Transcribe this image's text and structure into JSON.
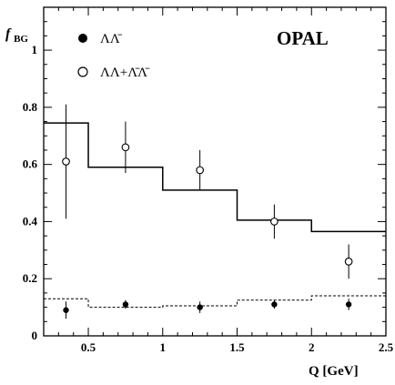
{
  "chart_data": {
    "type": "scatter",
    "experiment_label": "OPAL",
    "xlabel": "Q [GeV]",
    "ylabel": "f_BG",
    "ylabel_main": "f",
    "ylabel_sub": "BG",
    "xlim": [
      0.2,
      2.5
    ],
    "ylim": [
      0,
      1.15
    ],
    "x_ticks": [
      0.5,
      1,
      1.5,
      2,
      2.5
    ],
    "x_tick_labels": [
      "0.5",
      "1",
      "1.5",
      "2",
      "2.5"
    ],
    "y_ticks": [
      0,
      0.2,
      0.4,
      0.6,
      0.8,
      1
    ],
    "y_tick_labels": [
      "0",
      "0.2",
      "0.4",
      "0.6",
      "0.8",
      "1"
    ],
    "legend_position": "top-left",
    "series": [
      {
        "name": "ΛΛ̄",
        "marker": "filled-circle",
        "points": [
          {
            "x": 0.35,
            "y": 0.09,
            "yerr": 0.03
          },
          {
            "x": 0.75,
            "y": 0.11,
            "yerr": 0.015
          },
          {
            "x": 1.25,
            "y": 0.1,
            "yerr": 0.02
          },
          {
            "x": 1.75,
            "y": 0.11,
            "yerr": 0.015
          },
          {
            "x": 2.25,
            "y": 0.11,
            "yerr": 0.02
          }
        ],
        "histogram_style": "dashed",
        "histogram": [
          {
            "x0": 0.2,
            "x1": 0.5,
            "y": 0.13
          },
          {
            "x0": 0.5,
            "x1": 1.0,
            "y": 0.1
          },
          {
            "x0": 1.0,
            "x1": 1.5,
            "y": 0.105
          },
          {
            "x0": 1.5,
            "x1": 2.0,
            "y": 0.125
          },
          {
            "x0": 2.0,
            "x1": 2.5,
            "y": 0.14
          }
        ]
      },
      {
        "name": "ΛΛ+Λ̄Λ̄",
        "marker": "open-circle",
        "points": [
          {
            "x": 0.35,
            "y": 0.61,
            "yerr": 0.2
          },
          {
            "x": 0.75,
            "y": 0.66,
            "yerr": 0.09
          },
          {
            "x": 1.25,
            "y": 0.58,
            "yerr": 0.07
          },
          {
            "x": 1.75,
            "y": 0.4,
            "yerr": 0.06
          },
          {
            "x": 2.25,
            "y": 0.26,
            "yerr": 0.06
          }
        ],
        "histogram_style": "solid",
        "histogram": [
          {
            "x0": 0.2,
            "x1": 0.5,
            "y": 0.745
          },
          {
            "x0": 0.5,
            "x1": 1.0,
            "y": 0.59
          },
          {
            "x0": 1.0,
            "x1": 1.5,
            "y": 0.51
          },
          {
            "x0": 1.5,
            "x1": 2.0,
            "y": 0.405
          },
          {
            "x0": 2.0,
            "x1": 2.5,
            "y": 0.365
          }
        ]
      }
    ]
  }
}
